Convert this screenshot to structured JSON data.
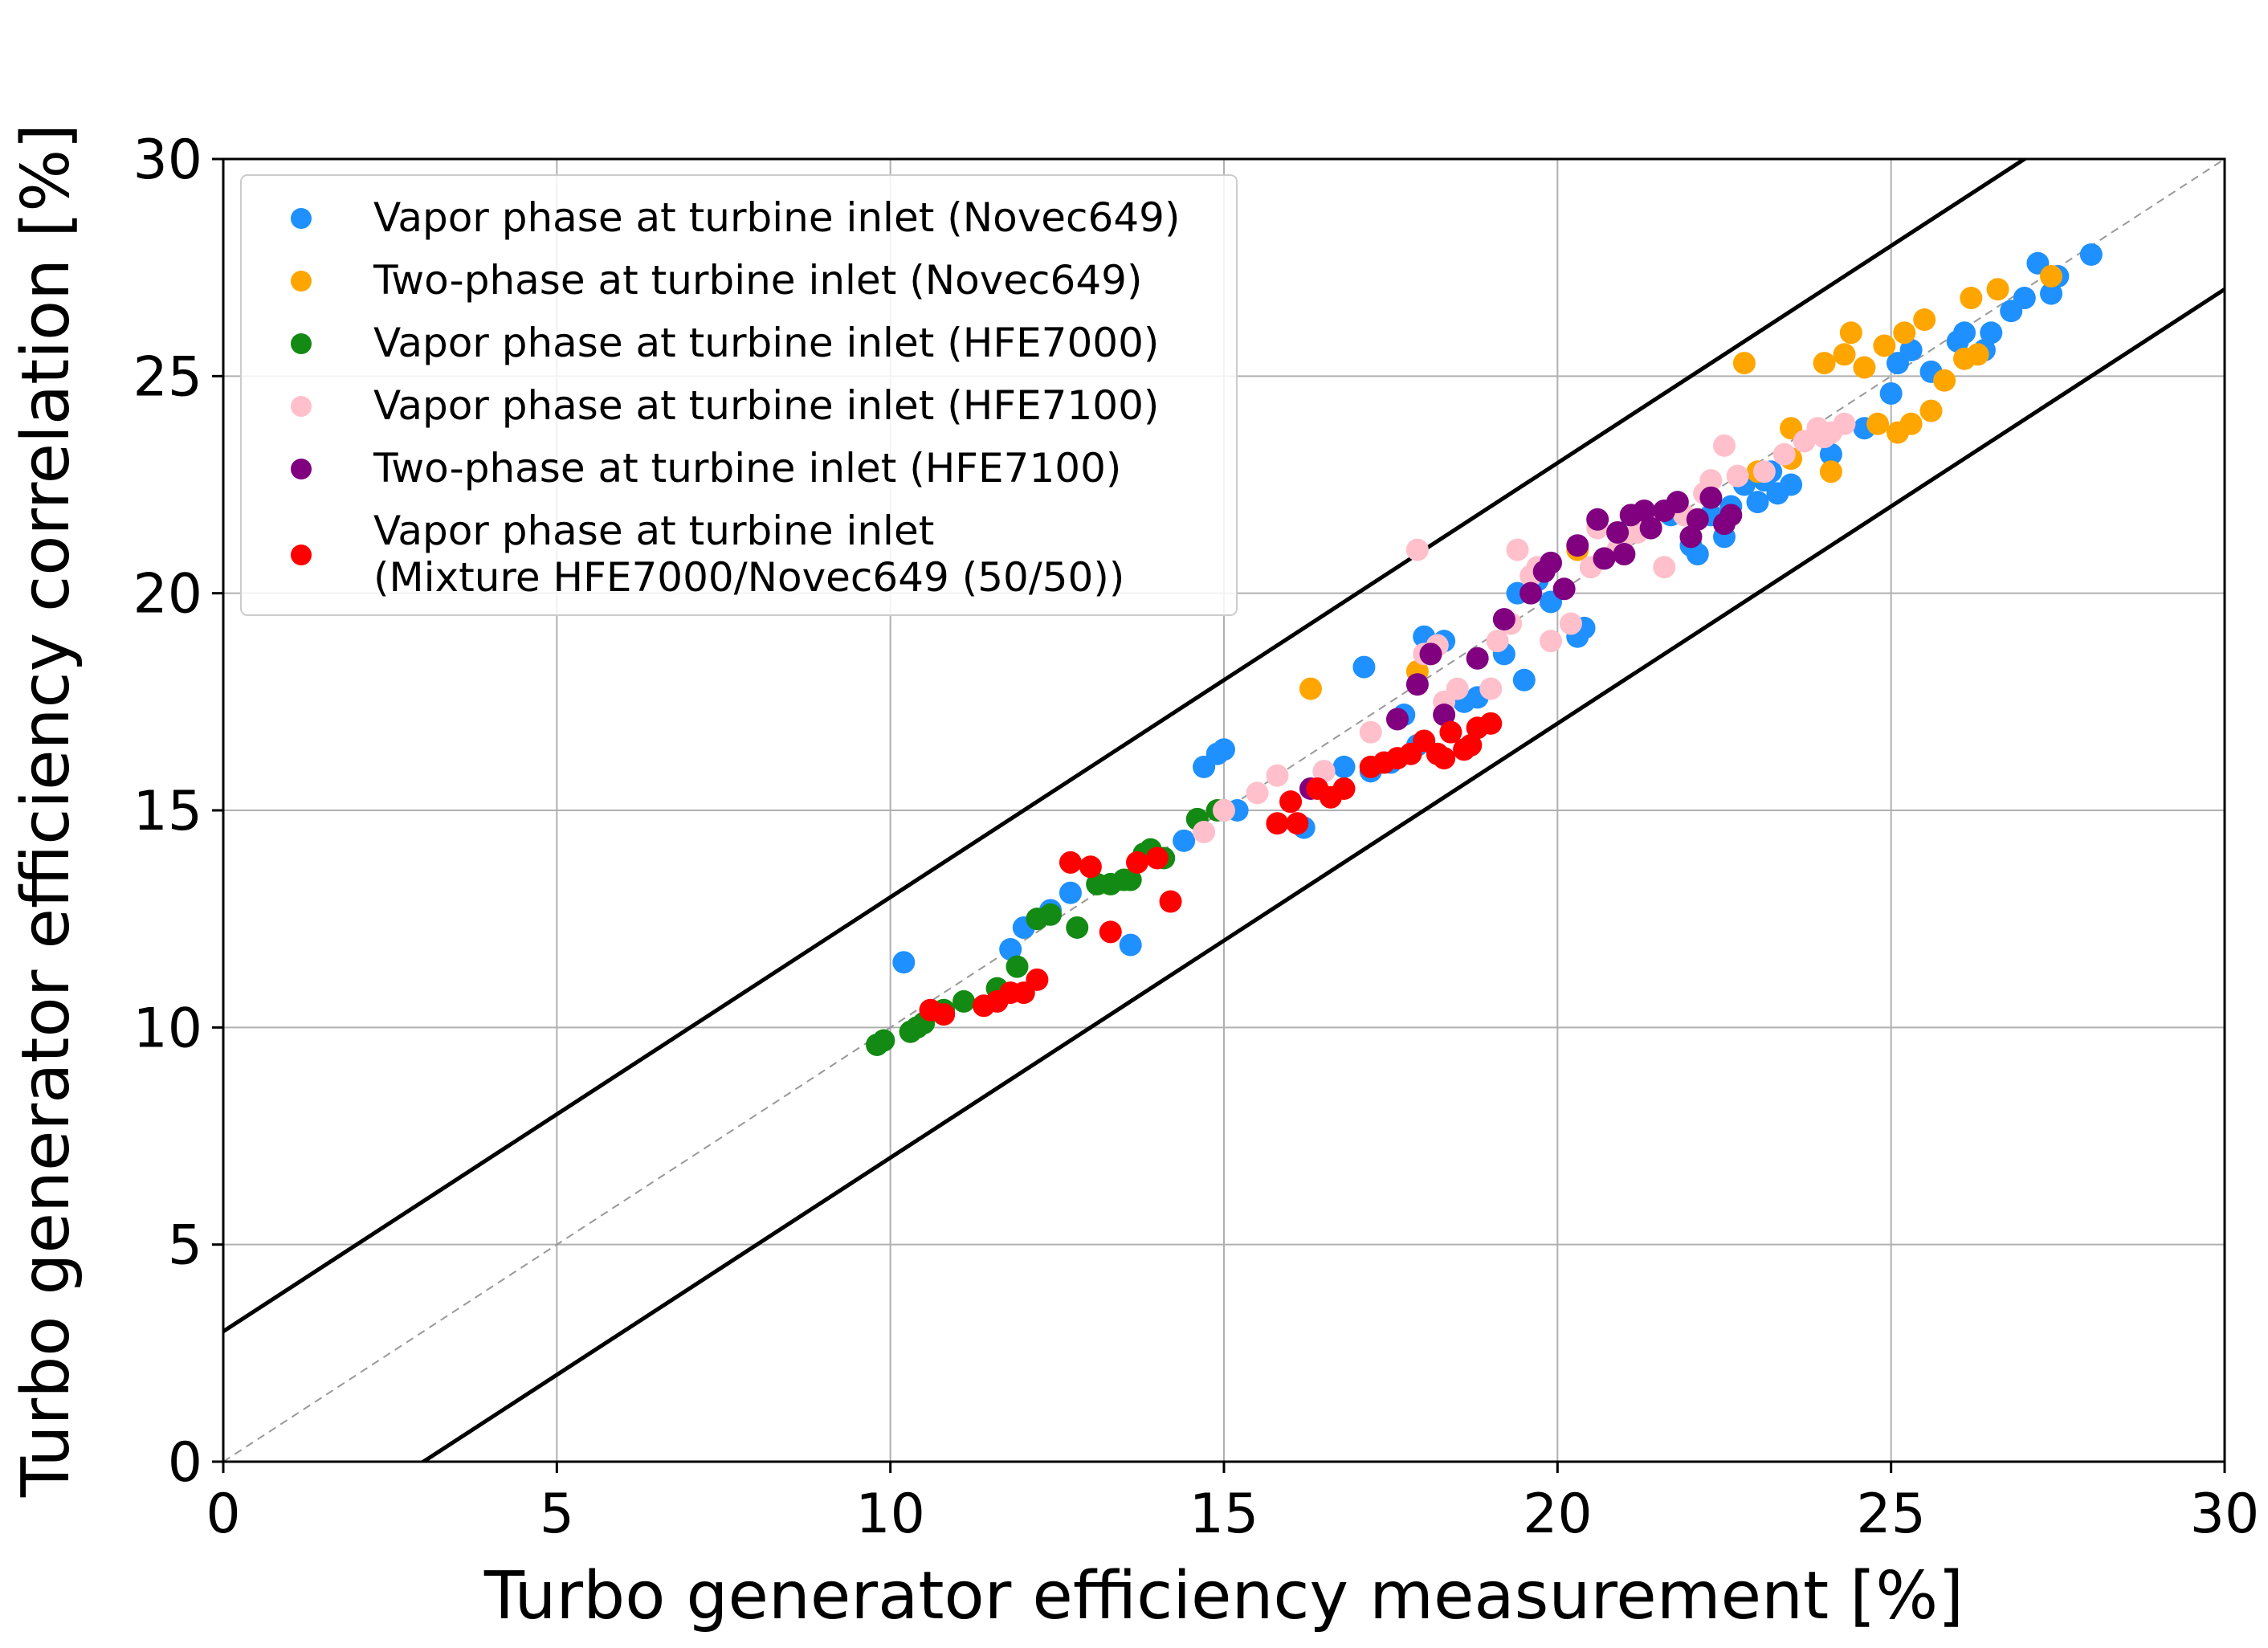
{
  "chart_data": {
    "type": "scatter",
    "title": "",
    "xlabel": "Turbo generator efficiency measurement [%]",
    "ylabel": "Turbo generator efficiency correlation [%]",
    "xlim": [
      0,
      30
    ],
    "ylim": [
      0,
      30
    ],
    "xticks": [
      "0",
      "5",
      "10",
      "15",
      "20",
      "25",
      "30"
    ],
    "yticks": [
      "0",
      "5",
      "10",
      "15",
      "20",
      "25",
      "30"
    ],
    "grid": true,
    "legend_position": "top-left",
    "reference_lines": [
      {
        "name": "upper-bound",
        "points": [
          [
            0,
            3
          ],
          [
            30,
            33
          ]
        ],
        "style": "solid"
      },
      {
        "name": "lower-bound",
        "points": [
          [
            0,
            -3
          ],
          [
            30,
            27
          ]
        ],
        "style": "solid"
      },
      {
        "name": "identity",
        "points": [
          [
            0,
            0
          ],
          [
            30,
            30
          ]
        ],
        "style": "dashed"
      }
    ],
    "series": [
      {
        "name": "Vapor phase at turbine inlet (Novec649)",
        "color": "#1E90FF",
        "points": [
          [
            10.2,
            11.5
          ],
          [
            11.8,
            11.8
          ],
          [
            12.0,
            12.3
          ],
          [
            12.4,
            12.7
          ],
          [
            12.7,
            13.1
          ],
          [
            13.6,
            11.9
          ],
          [
            14.4,
            14.3
          ],
          [
            14.7,
            16.0
          ],
          [
            14.9,
            16.3
          ],
          [
            15.0,
            16.4
          ],
          [
            15.2,
            15.0
          ],
          [
            16.2,
            14.6
          ],
          [
            16.5,
            15.9
          ],
          [
            16.8,
            16.0
          ],
          [
            17.1,
            18.3
          ],
          [
            17.2,
            15.9
          ],
          [
            17.5,
            16.1
          ],
          [
            17.7,
            17.2
          ],
          [
            17.9,
            16.5
          ],
          [
            18.0,
            19.0
          ],
          [
            18.3,
            18.9
          ],
          [
            18.6,
            17.5
          ],
          [
            18.8,
            17.6
          ],
          [
            19.2,
            18.6
          ],
          [
            19.4,
            20.0
          ],
          [
            19.5,
            18.0
          ],
          [
            19.7,
            20.3
          ],
          [
            19.9,
            19.8
          ],
          [
            20.3,
            19.0
          ],
          [
            20.4,
            19.2
          ],
          [
            21.0,
            21.4
          ],
          [
            21.3,
            21.5
          ],
          [
            21.7,
            21.8
          ],
          [
            22.0,
            21.1
          ],
          [
            22.1,
            20.9
          ],
          [
            22.3,
            21.8
          ],
          [
            22.5,
            21.3
          ],
          [
            22.6,
            22.0
          ],
          [
            22.8,
            22.5
          ],
          [
            23.0,
            22.1
          ],
          [
            23.1,
            22.6
          ],
          [
            23.2,
            22.8
          ],
          [
            23.3,
            22.3
          ],
          [
            23.5,
            22.5
          ],
          [
            24.0,
            23.6
          ],
          [
            24.1,
            23.2
          ],
          [
            24.6,
            23.8
          ],
          [
            25.0,
            24.6
          ],
          [
            25.1,
            25.3
          ],
          [
            25.3,
            25.6
          ],
          [
            25.6,
            25.1
          ],
          [
            26.0,
            25.8
          ],
          [
            26.1,
            26.0
          ],
          [
            26.4,
            25.6
          ],
          [
            26.5,
            26.0
          ],
          [
            26.8,
            26.5
          ],
          [
            27.0,
            26.8
          ],
          [
            27.2,
            27.6
          ],
          [
            27.4,
            26.9
          ],
          [
            27.5,
            27.3
          ],
          [
            28.0,
            27.8
          ]
        ]
      },
      {
        "name": "Two-phase at turbine inlet (Novec649)",
        "color": "#FFA500",
        "points": [
          [
            16.3,
            17.8
          ],
          [
            17.9,
            18.2
          ],
          [
            20.3,
            21.0
          ],
          [
            22.8,
            25.3
          ],
          [
            23.0,
            22.8
          ],
          [
            23.5,
            23.1
          ],
          [
            23.5,
            23.8
          ],
          [
            24.0,
            25.3
          ],
          [
            24.1,
            22.8
          ],
          [
            24.3,
            25.5
          ],
          [
            24.4,
            26.0
          ],
          [
            24.6,
            25.2
          ],
          [
            24.8,
            23.9
          ],
          [
            24.9,
            25.7
          ],
          [
            25.1,
            23.7
          ],
          [
            25.2,
            26.0
          ],
          [
            25.3,
            23.9
          ],
          [
            25.5,
            26.3
          ],
          [
            25.6,
            24.2
          ],
          [
            25.8,
            24.9
          ],
          [
            26.1,
            25.4
          ],
          [
            26.2,
            26.8
          ],
          [
            26.3,
            25.5
          ],
          [
            26.6,
            27.0
          ],
          [
            27.4,
            27.3
          ]
        ]
      },
      {
        "name": "Vapor phase at turbine inlet (HFE7000)",
        "color": "#138A13",
        "points": [
          [
            9.8,
            9.6
          ],
          [
            9.9,
            9.7
          ],
          [
            10.3,
            9.9
          ],
          [
            10.4,
            10.0
          ],
          [
            10.5,
            10.1
          ],
          [
            10.8,
            10.4
          ],
          [
            11.1,
            10.6
          ],
          [
            11.6,
            10.9
          ],
          [
            11.9,
            11.4
          ],
          [
            12.2,
            12.5
          ],
          [
            12.4,
            12.6
          ],
          [
            12.8,
            12.3
          ],
          [
            13.1,
            13.3
          ],
          [
            13.3,
            13.3
          ],
          [
            13.5,
            13.4
          ],
          [
            13.6,
            13.4
          ],
          [
            13.8,
            14.0
          ],
          [
            13.9,
            14.1
          ],
          [
            14.1,
            13.9
          ],
          [
            14.6,
            14.8
          ],
          [
            14.9,
            15.0
          ],
          [
            15.0,
            15.0
          ]
        ]
      },
      {
        "name": "Vapor phase at turbine inlet (HFE7100)",
        "color": "#FFC0CB",
        "points": [
          [
            14.7,
            14.5
          ],
          [
            15.0,
            15.0
          ],
          [
            15.5,
            15.4
          ],
          [
            15.8,
            15.8
          ],
          [
            16.5,
            15.9
          ],
          [
            17.2,
            16.8
          ],
          [
            17.9,
            21.0
          ],
          [
            18.0,
            18.6
          ],
          [
            18.2,
            18.8
          ],
          [
            18.3,
            17.5
          ],
          [
            18.5,
            17.8
          ],
          [
            19.1,
            18.9
          ],
          [
            19.3,
            19.3
          ],
          [
            19.4,
            21.0
          ],
          [
            19.6,
            20.4
          ],
          [
            19.7,
            20.6
          ],
          [
            19.9,
            18.9
          ],
          [
            20.2,
            19.3
          ],
          [
            20.5,
            20.6
          ],
          [
            20.6,
            21.5
          ],
          [
            20.9,
            21.0
          ],
          [
            21.0,
            21.3
          ],
          [
            21.2,
            21.4
          ],
          [
            21.4,
            21.6
          ],
          [
            21.6,
            20.6
          ],
          [
            21.9,
            21.8
          ],
          [
            22.2,
            22.3
          ],
          [
            22.3,
            22.6
          ],
          [
            22.5,
            23.4
          ],
          [
            22.7,
            22.7
          ],
          [
            23.1,
            22.8
          ],
          [
            23.4,
            23.2
          ],
          [
            23.7,
            23.5
          ],
          [
            23.9,
            23.8
          ],
          [
            24.1,
            23.7
          ],
          [
            24.3,
            23.9
          ],
          [
            24.0,
            23.6
          ],
          [
            19.0,
            17.8
          ]
        ]
      },
      {
        "name": "Two-phase at turbine inlet (HFE7100)",
        "color": "#800080",
        "points": [
          [
            16.3,
            15.5
          ],
          [
            17.6,
            17.1
          ],
          [
            18.1,
            18.6
          ],
          [
            18.3,
            17.2
          ],
          [
            18.8,
            18.5
          ],
          [
            19.2,
            19.4
          ],
          [
            19.6,
            20.0
          ],
          [
            19.8,
            20.5
          ],
          [
            19.9,
            20.7
          ],
          [
            20.1,
            20.1
          ],
          [
            20.3,
            21.1
          ],
          [
            20.7,
            20.8
          ],
          [
            20.9,
            21.4
          ],
          [
            21.0,
            20.9
          ],
          [
            21.1,
            21.8
          ],
          [
            21.3,
            21.9
          ],
          [
            21.4,
            21.5
          ],
          [
            21.6,
            21.9
          ],
          [
            21.8,
            22.1
          ],
          [
            22.0,
            21.3
          ],
          [
            22.1,
            21.7
          ],
          [
            22.3,
            22.2
          ],
          [
            22.5,
            21.6
          ],
          [
            22.6,
            21.8
          ],
          [
            20.6,
            21.7
          ],
          [
            17.9,
            17.9
          ]
        ]
      },
      {
        "name": "Vapor phase at turbine inlet\n(Mixture HFE7000/Novec649 (50/50))",
        "color": "#FF0000",
        "points": [
          [
            10.6,
            10.4
          ],
          [
            10.8,
            10.3
          ],
          [
            11.4,
            10.5
          ],
          [
            11.6,
            10.6
          ],
          [
            11.8,
            10.8
          ],
          [
            12.0,
            10.8
          ],
          [
            12.2,
            11.1
          ],
          [
            12.7,
            13.8
          ],
          [
            13.0,
            13.7
          ],
          [
            13.3,
            12.2
          ],
          [
            13.7,
            13.8
          ],
          [
            14.0,
            13.9
          ],
          [
            14.2,
            12.9
          ],
          [
            15.8,
            14.7
          ],
          [
            16.1,
            14.7
          ],
          [
            16.0,
            15.2
          ],
          [
            16.4,
            15.5
          ],
          [
            16.6,
            15.3
          ],
          [
            16.8,
            15.5
          ],
          [
            17.2,
            16.0
          ],
          [
            17.4,
            16.1
          ],
          [
            17.6,
            16.2
          ],
          [
            17.8,
            16.3
          ],
          [
            18.0,
            16.6
          ],
          [
            18.2,
            16.3
          ],
          [
            18.4,
            16.8
          ],
          [
            18.6,
            16.4
          ],
          [
            18.8,
            16.9
          ],
          [
            19.0,
            17.0
          ],
          [
            18.3,
            16.2
          ],
          [
            18.7,
            16.5
          ]
        ]
      }
    ]
  }
}
